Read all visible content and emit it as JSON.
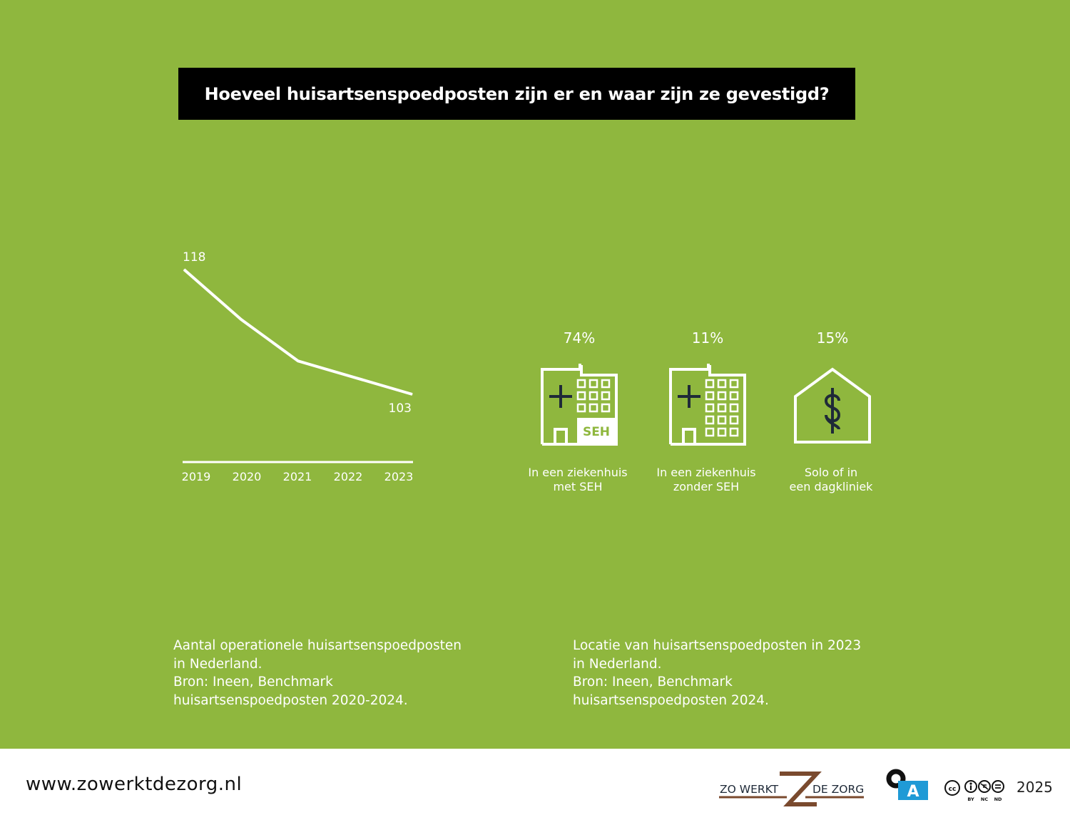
{
  "title": "Hoeveel huisartsenspoedposten zijn er en waar zijn ze gevestigd?",
  "chart_data": [
    {
      "type": "line",
      "x": [
        "2019",
        "2020",
        "2021",
        "2022",
        "2023"
      ],
      "series": [
        {
          "values": [
            118,
            112,
            107,
            105,
            103
          ]
        }
      ],
      "point_labels": [
        {
          "index": 0,
          "text": "118"
        },
        {
          "index": 4,
          "text": "103"
        }
      ],
      "ylim": [
        97,
        118
      ],
      "grid": false,
      "caption_lines": [
        "Aantal operationele huisartsenspoedposten",
        "in Nederland.",
        "Bron: Ineen, Benchmark",
        "huisartsenspoedposten 2020-2024."
      ]
    },
    {
      "type": "bar",
      "categories": [
        "In een ziekenhuis met SEH",
        "In een ziekenhuis zonder SEH",
        "Solo of in een dagkliniek"
      ],
      "values": [
        74,
        11,
        15
      ],
      "unit": "%",
      "items": [
        {
          "percent": "74%",
          "label_lines": [
            "In een ziekenhuis",
            "met SEH"
          ],
          "icon": "hospital-with-seh-icon",
          "badge": "SEH"
        },
        {
          "percent": "11%",
          "label_lines": [
            "In een ziekenhuis",
            "zonder SEH"
          ],
          "icon": "hospital-icon"
        },
        {
          "percent": "15%",
          "label_lines": [
            "Solo of in",
            "een dagkliniek"
          ],
          "icon": "house-caduceus-icon"
        }
      ],
      "caption_lines": [
        "Locatie van huisartsenspoedposten in 2023",
        "in Nederland.",
        "Bron: Ineen, Benchmark",
        "huisartsenspoedposten 2024."
      ]
    }
  ],
  "footer": {
    "url": "www.zowerktdezorg.nl",
    "logo_left": "ZO WERKT",
    "logo_right": "DE ZORG",
    "oa_letter": "A",
    "cc_terms": [
      "BY",
      "NC",
      "ND"
    ],
    "year": "2025"
  },
  "colors": {
    "background": "#8fb73e",
    "title_bar": "#000000",
    "icon_dark": "#1f2a38",
    "logo_brown": "#7a4a2e",
    "oa_blue": "#1f9ad6"
  }
}
